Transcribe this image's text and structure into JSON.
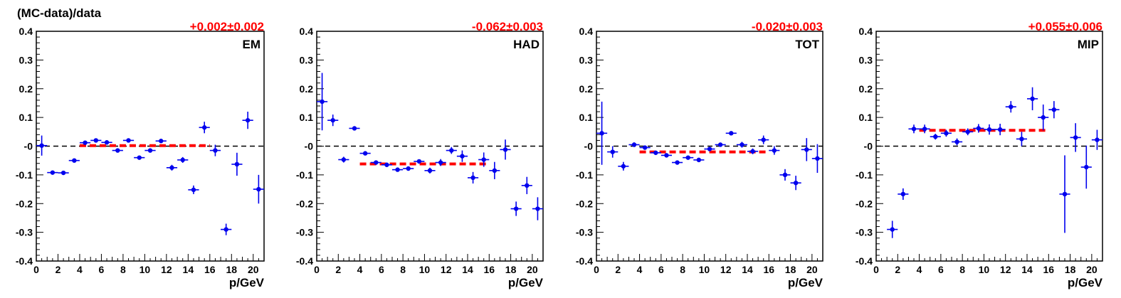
{
  "figure": {
    "ylabel": "(MC-data)/data",
    "colors": {
      "data_points": "#0000ee",
      "fit_line": "#ff0000",
      "zero_line": "#000000",
      "fit_text": "#ff0000"
    }
  },
  "chart_data": [
    {
      "type": "scatter",
      "label": "EM",
      "fit_text": "+0.002±0.002",
      "fit": {
        "value": 0.002,
        "x_range": [
          4,
          16
        ]
      },
      "xlabel": "p/GeV",
      "ylabel": "(MC-data)/data",
      "xlim": [
        0,
        21
      ],
      "ylim": [
        -0.4,
        0.4
      ],
      "xticks": [
        0,
        2,
        4,
        6,
        8,
        10,
        12,
        14,
        16,
        18,
        20
      ],
      "yticks": [
        -0.4,
        -0.3,
        -0.2,
        -0.1,
        0,
        0.1,
        0.2,
        0.3,
        0.4
      ],
      "ytick_labels": [
        "-0.4",
        "-0.3",
        "-0.2",
        "-0.1",
        "-0",
        "0.1",
        "0.2",
        "0.3",
        "0.4"
      ],
      "reference_line": 0,
      "grid": false,
      "points": [
        {
          "x": 0.5,
          "y": 0.002,
          "yerr": 0.035
        },
        {
          "x": 1.5,
          "y": -0.092,
          "yerr": 0.005
        },
        {
          "x": 2.5,
          "y": -0.093,
          "yerr": 0.005
        },
        {
          "x": 3.5,
          "y": -0.05,
          "yerr": 0.005
        },
        {
          "x": 4.5,
          "y": 0.012,
          "yerr": 0.005
        },
        {
          "x": 5.5,
          "y": 0.02,
          "yerr": 0.005
        },
        {
          "x": 6.5,
          "y": 0.013,
          "yerr": 0.005
        },
        {
          "x": 7.5,
          "y": -0.015,
          "yerr": 0.005
        },
        {
          "x": 8.5,
          "y": 0.02,
          "yerr": 0.005
        },
        {
          "x": 9.5,
          "y": -0.04,
          "yerr": 0.005
        },
        {
          "x": 10.5,
          "y": -0.015,
          "yerr": 0.005
        },
        {
          "x": 11.5,
          "y": 0.018,
          "yerr": 0.007
        },
        {
          "x": 12.5,
          "y": -0.075,
          "yerr": 0.01
        },
        {
          "x": 13.5,
          "y": -0.048,
          "yerr": 0.01
        },
        {
          "x": 14.5,
          "y": -0.152,
          "yerr": 0.015
        },
        {
          "x": 15.5,
          "y": 0.065,
          "yerr": 0.02
        },
        {
          "x": 16.5,
          "y": -0.015,
          "yerr": 0.02
        },
        {
          "x": 17.5,
          "y": -0.29,
          "yerr": 0.02
        },
        {
          "x": 18.5,
          "y": -0.063,
          "yerr": 0.04
        },
        {
          "x": 19.5,
          "y": 0.09,
          "yerr": 0.03
        },
        {
          "x": 20.5,
          "y": -0.15,
          "yerr": 0.05
        }
      ]
    },
    {
      "type": "scatter",
      "label": "HAD",
      "fit_text": "-0.062±0.003",
      "fit": {
        "value": -0.062,
        "x_range": [
          4,
          16
        ]
      },
      "xlabel": "p/GeV",
      "ylabel": "",
      "xlim": [
        0,
        21
      ],
      "ylim": [
        -0.4,
        0.4
      ],
      "xticks": [
        0,
        2,
        4,
        6,
        8,
        10,
        12,
        14,
        16,
        18,
        20
      ],
      "yticks": [
        -0.4,
        -0.3,
        -0.2,
        -0.1,
        0,
        0.1,
        0.2,
        0.3,
        0.4
      ],
      "ytick_labels": [
        "-0.4",
        "-0.3",
        "-0.2",
        "-0.1",
        "-0",
        "0.1",
        "0.2",
        "0.3",
        "0.4"
      ],
      "reference_line": 0,
      "grid": false,
      "points": [
        {
          "x": 0.5,
          "y": 0.155,
          "yerr": 0.1
        },
        {
          "x": 1.5,
          "y": 0.09,
          "yerr": 0.02
        },
        {
          "x": 2.5,
          "y": -0.047,
          "yerr": 0.01
        },
        {
          "x": 3.5,
          "y": 0.062,
          "yerr": 0.005
        },
        {
          "x": 4.5,
          "y": -0.025,
          "yerr": 0.005
        },
        {
          "x": 5.5,
          "y": -0.057,
          "yerr": 0.005
        },
        {
          "x": 6.5,
          "y": -0.065,
          "yerr": 0.005
        },
        {
          "x": 7.5,
          "y": -0.082,
          "yerr": 0.005
        },
        {
          "x": 8.5,
          "y": -0.078,
          "yerr": 0.005
        },
        {
          "x": 9.5,
          "y": -0.053,
          "yerr": 0.007
        },
        {
          "x": 10.5,
          "y": -0.085,
          "yerr": 0.01
        },
        {
          "x": 11.5,
          "y": -0.057,
          "yerr": 0.012
        },
        {
          "x": 12.5,
          "y": -0.015,
          "yerr": 0.012
        },
        {
          "x": 13.5,
          "y": -0.035,
          "yerr": 0.02
        },
        {
          "x": 14.5,
          "y": -0.11,
          "yerr": 0.02
        },
        {
          "x": 15.5,
          "y": -0.047,
          "yerr": 0.025
        },
        {
          "x": 16.5,
          "y": -0.085,
          "yerr": 0.03
        },
        {
          "x": 17.5,
          "y": -0.012,
          "yerr": 0.035
        },
        {
          "x": 18.5,
          "y": -0.218,
          "yerr": 0.025
        },
        {
          "x": 19.5,
          "y": -0.137,
          "yerr": 0.03
        },
        {
          "x": 20.5,
          "y": -0.218,
          "yerr": 0.04
        }
      ]
    },
    {
      "type": "scatter",
      "label": "TOT",
      "fit_text": "-0.020±0.003",
      "fit": {
        "value": -0.02,
        "x_range": [
          4,
          16
        ]
      },
      "xlabel": "p/GeV",
      "ylabel": "",
      "xlim": [
        0,
        21
      ],
      "ylim": [
        -0.4,
        0.4
      ],
      "xticks": [
        0,
        2,
        4,
        6,
        8,
        10,
        12,
        14,
        16,
        18,
        20
      ],
      "yticks": [
        -0.4,
        -0.3,
        -0.2,
        -0.1,
        0,
        0.1,
        0.2,
        0.3,
        0.4
      ],
      "ytick_labels": [
        "-0.4",
        "-0.3",
        "-0.2",
        "-0.1",
        "-0",
        "0.1",
        "0.2",
        "0.3",
        "0.4"
      ],
      "reference_line": 0,
      "grid": false,
      "points": [
        {
          "x": 0.5,
          "y": 0.045,
          "yerr": 0.11
        },
        {
          "x": 1.5,
          "y": -0.02,
          "yerr": 0.02
        },
        {
          "x": 2.5,
          "y": -0.07,
          "yerr": 0.015
        },
        {
          "x": 3.5,
          "y": 0.005,
          "yerr": 0.008
        },
        {
          "x": 4.5,
          "y": -0.005,
          "yerr": 0.005
        },
        {
          "x": 5.5,
          "y": -0.023,
          "yerr": 0.005
        },
        {
          "x": 6.5,
          "y": -0.032,
          "yerr": 0.005
        },
        {
          "x": 7.5,
          "y": -0.057,
          "yerr": 0.005
        },
        {
          "x": 8.5,
          "y": -0.04,
          "yerr": 0.005
        },
        {
          "x": 9.5,
          "y": -0.048,
          "yerr": 0.005
        },
        {
          "x": 10.5,
          "y": -0.01,
          "yerr": 0.005
        },
        {
          "x": 11.5,
          "y": 0.005,
          "yerr": 0.005
        },
        {
          "x": 12.5,
          "y": 0.045,
          "yerr": 0.007
        },
        {
          "x": 13.5,
          "y": 0.005,
          "yerr": 0.01
        },
        {
          "x": 14.5,
          "y": -0.018,
          "yerr": 0.01
        },
        {
          "x": 15.5,
          "y": 0.022,
          "yerr": 0.015
        },
        {
          "x": 16.5,
          "y": -0.015,
          "yerr": 0.015
        },
        {
          "x": 17.5,
          "y": -0.1,
          "yerr": 0.02
        },
        {
          "x": 18.5,
          "y": -0.128,
          "yerr": 0.025
        },
        {
          "x": 19.5,
          "y": -0.012,
          "yerr": 0.04
        },
        {
          "x": 20.5,
          "y": -0.043,
          "yerr": 0.05
        }
      ]
    },
    {
      "type": "scatter",
      "label": "MIP",
      "fit_text": "+0.055±0.006",
      "fit": {
        "value": 0.055,
        "x_range": [
          4,
          16
        ]
      },
      "xlabel": "p/GeV",
      "ylabel": "",
      "xlim": [
        0,
        21
      ],
      "ylim": [
        -0.4,
        0.4
      ],
      "xticks": [
        0,
        2,
        4,
        6,
        8,
        10,
        12,
        14,
        16,
        18,
        20
      ],
      "yticks": [
        -0.4,
        -0.3,
        -0.2,
        -0.1,
        0,
        0.1,
        0.2,
        0.3,
        0.4
      ],
      "ytick_labels": [
        "-0.4",
        "-0.3",
        "-0.2",
        "-0.1",
        "-0",
        "0.1",
        "0.2",
        "0.3",
        "0.4"
      ],
      "reference_line": 0,
      "grid": false,
      "points": [
        {
          "x": 1.5,
          "y": -0.29,
          "yerr": 0.03
        },
        {
          "x": 2.5,
          "y": -0.167,
          "yerr": 0.02
        },
        {
          "x": 3.5,
          "y": 0.06,
          "yerr": 0.015
        },
        {
          "x": 4.5,
          "y": 0.06,
          "yerr": 0.015
        },
        {
          "x": 5.5,
          "y": 0.033,
          "yerr": 0.01
        },
        {
          "x": 6.5,
          "y": 0.045,
          "yerr": 0.012
        },
        {
          "x": 7.5,
          "y": 0.015,
          "yerr": 0.012
        },
        {
          "x": 8.5,
          "y": 0.05,
          "yerr": 0.012
        },
        {
          "x": 9.5,
          "y": 0.062,
          "yerr": 0.015
        },
        {
          "x": 10.5,
          "y": 0.058,
          "yerr": 0.018
        },
        {
          "x": 11.5,
          "y": 0.058,
          "yerr": 0.02
        },
        {
          "x": 12.5,
          "y": 0.137,
          "yerr": 0.02
        },
        {
          "x": 13.5,
          "y": 0.025,
          "yerr": 0.025
        },
        {
          "x": 14.5,
          "y": 0.165,
          "yerr": 0.04
        },
        {
          "x": 15.5,
          "y": 0.1,
          "yerr": 0.045
        },
        {
          "x": 16.5,
          "y": 0.127,
          "yerr": 0.03
        },
        {
          "x": 17.5,
          "y": -0.167,
          "yerr": 0.135
        },
        {
          "x": 18.5,
          "y": 0.03,
          "yerr": 0.05
        },
        {
          "x": 19.5,
          "y": -0.073,
          "yerr": 0.075
        },
        {
          "x": 20.5,
          "y": 0.022,
          "yerr": 0.035
        }
      ]
    }
  ]
}
